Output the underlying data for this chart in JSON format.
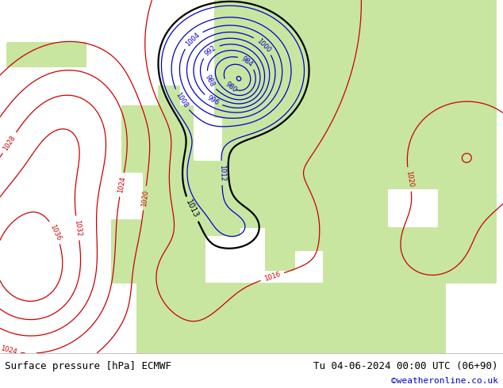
{
  "footer_left": "Surface pressure [hPa] ECMWF",
  "footer_right": "Tu 04-06-2024 00:00 UTC (06+90)",
  "footer_credit": "©weatheronline.co.uk",
  "bg_color": "#d8d8d8",
  "land_color_light": "#c8e6a0",
  "contour_color_low": "#0000cc",
  "contour_color_high": "#cc0000",
  "contour_color_1013": "#000000",
  "footer_bg": "#ffffff",
  "footer_text_color": "#000000",
  "footer_credit_color": "#0000cc",
  "figsize": [
    6.34,
    4.9
  ],
  "dpi": 100
}
